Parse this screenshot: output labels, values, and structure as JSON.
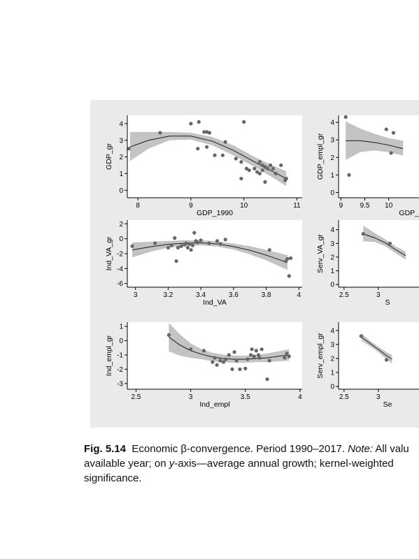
{
  "caption": {
    "figure_number": "Fig. 5.14",
    "title": "Economic β-convergence. Period 1990–2017.",
    "note_label": "Note:",
    "line1_rest": "All valu",
    "line2_start": "available year; on",
    "line2_axis": "y",
    "line2_rest": "-axis—average annual growth; kernel-weighted",
    "line3": "significance."
  },
  "colors": {
    "panel_bg": "#eaeaea",
    "plot_bg": "#ffffff",
    "ci_band": "#bdbdbd",
    "fit_line": "#1a1a1a",
    "marker": "#666666"
  },
  "chart_data": [
    {
      "id": "gdp",
      "type": "scatter",
      "xlabel": "GDP_1990",
      "ylabel": "GDP_gr",
      "xlim": [
        7.8,
        11.1
      ],
      "ylim": [
        -0.45,
        4.5
      ],
      "xticks": [
        8,
        9,
        10,
        11
      ],
      "yticks": [
        0,
        1,
        2,
        3,
        4
      ],
      "points": [
        [
          7.83,
          2.5
        ],
        [
          8.42,
          3.45
        ],
        [
          9.0,
          4.0
        ],
        [
          9.15,
          4.1
        ],
        [
          9.13,
          2.5
        ],
        [
          9.25,
          3.5
        ],
        [
          9.3,
          3.5
        ],
        [
          9.35,
          3.45
        ],
        [
          9.3,
          2.6
        ],
        [
          9.45,
          2.1
        ],
        [
          9.6,
          2.1
        ],
        [
          9.65,
          2.9
        ],
        [
          9.85,
          1.9
        ],
        [
          9.95,
          1.7
        ],
        [
          9.95,
          0.7
        ],
        [
          10.0,
          4.1
        ],
        [
          10.05,
          1.3
        ],
        [
          10.1,
          1.2
        ],
        [
          10.2,
          1.3
        ],
        [
          10.25,
          1.1
        ],
        [
          10.3,
          1.7
        ],
        [
          10.35,
          1.5
        ],
        [
          10.3,
          1.0
        ],
        [
          10.35,
          1.2
        ],
        [
          10.4,
          1.4
        ],
        [
          10.45,
          1.3
        ],
        [
          10.5,
          1.5
        ],
        [
          10.55,
          1.3
        ],
        [
          10.6,
          1.0
        ],
        [
          10.7,
          1.5
        ],
        [
          10.8,
          0.7
        ],
        [
          10.78,
          0.6
        ],
        [
          10.4,
          0.5
        ]
      ],
      "fit": [
        [
          7.85,
          2.6
        ],
        [
          8.2,
          3.0
        ],
        [
          8.6,
          3.25
        ],
        [
          9.0,
          3.25
        ],
        [
          9.4,
          2.95
        ],
        [
          9.8,
          2.4
        ],
        [
          10.2,
          1.7
        ],
        [
          10.5,
          1.2
        ],
        [
          10.8,
          0.7
        ]
      ],
      "ci_upper": [
        [
          7.85,
          3.5
        ],
        [
          8.2,
          3.5
        ],
        [
          8.6,
          3.5
        ],
        [
          9.0,
          3.45
        ],
        [
          9.4,
          3.2
        ],
        [
          9.8,
          2.7
        ],
        [
          10.2,
          2.0
        ],
        [
          10.5,
          1.55
        ],
        [
          10.8,
          1.15
        ]
      ],
      "ci_lower": [
        [
          7.85,
          1.75
        ],
        [
          8.2,
          2.5
        ],
        [
          8.6,
          3.0
        ],
        [
          9.0,
          3.05
        ],
        [
          9.4,
          2.7
        ],
        [
          9.8,
          2.1
        ],
        [
          10.2,
          1.4
        ],
        [
          10.5,
          0.85
        ],
        [
          10.8,
          0.25
        ]
      ]
    },
    {
      "id": "gdp_empl",
      "type": "scatter",
      "xlabel": "GDP_",
      "ylabel": "GDP_empl_gr",
      "xlim": [
        8.95,
        11.0
      ],
      "ylim": [
        -0.3,
        4.4
      ],
      "xticks": [
        9,
        9.5,
        10
      ],
      "yticks": [
        0,
        1,
        2,
        3,
        4
      ],
      "points": [
        [
          9.1,
          4.3
        ],
        [
          9.17,
          1.0
        ],
        [
          9.95,
          3.6
        ],
        [
          10.05,
          2.25
        ],
        [
          10.1,
          3.4
        ]
      ],
      "fit": [
        [
          9.1,
          2.95
        ],
        [
          9.4,
          2.95
        ],
        [
          9.7,
          2.85
        ],
        [
          10.0,
          2.7
        ],
        [
          10.3,
          2.5
        ]
      ],
      "ci_upper": [
        [
          9.1,
          4.05
        ],
        [
          9.4,
          3.65
        ],
        [
          9.7,
          3.35
        ],
        [
          10.0,
          3.1
        ],
        [
          10.3,
          2.95
        ]
      ],
      "ci_lower": [
        [
          9.1,
          1.85
        ],
        [
          9.4,
          2.3
        ],
        [
          9.7,
          2.4
        ],
        [
          10.0,
          2.3
        ],
        [
          10.3,
          2.1
        ]
      ]
    },
    {
      "id": "ind_va",
      "type": "scatter",
      "xlabel": "Ind_VA",
      "ylabel": "Ind_VA_gr",
      "xlim": [
        2.95,
        4.02
      ],
      "ylim": [
        -6.5,
        2.5
      ],
      "xticks": [
        3,
        3.2,
        3.4,
        3.6,
        3.8,
        4
      ],
      "yticks": [
        -6,
        -4,
        -2,
        0,
        2
      ],
      "points": [
        [
          2.98,
          -1.0
        ],
        [
          3.12,
          -0.6
        ],
        [
          3.2,
          -1.2
        ],
        [
          3.22,
          -0.9
        ],
        [
          3.24,
          0.1
        ],
        [
          3.26,
          -1.2
        ],
        [
          3.25,
          -3.0
        ],
        [
          3.28,
          -1.0
        ],
        [
          3.3,
          -0.8
        ],
        [
          3.31,
          -0.6
        ],
        [
          3.32,
          -1.2
        ],
        [
          3.33,
          -0.7
        ],
        [
          3.34,
          -1.5
        ],
        [
          3.35,
          -0.9
        ],
        [
          3.36,
          0.8
        ],
        [
          3.37,
          -0.3
        ],
        [
          3.38,
          -0.5
        ],
        [
          3.4,
          -0.2
        ],
        [
          3.45,
          -0.6
        ],
        [
          3.5,
          -0.3
        ],
        [
          3.52,
          -0.7
        ],
        [
          3.55,
          -0.1
        ],
        [
          3.82,
          -1.5
        ],
        [
          3.92,
          -3.0
        ],
        [
          3.93,
          -2.7
        ],
        [
          3.94,
          -5.0
        ],
        [
          3.95,
          -2.6
        ]
      ],
      "fit": [
        [
          2.98,
          -1.5
        ],
        [
          3.1,
          -1.05
        ],
        [
          3.2,
          -0.75
        ],
        [
          3.3,
          -0.6
        ],
        [
          3.4,
          -0.55
        ],
        [
          3.5,
          -0.7
        ],
        [
          3.6,
          -1.05
        ],
        [
          3.7,
          -1.55
        ],
        [
          3.8,
          -2.2
        ],
        [
          3.93,
          -3.2
        ]
      ],
      "ci_upper": [
        [
          2.98,
          -0.5
        ],
        [
          3.1,
          -0.4
        ],
        [
          3.2,
          -0.3
        ],
        [
          3.3,
          -0.2
        ],
        [
          3.4,
          -0.2
        ],
        [
          3.5,
          -0.35
        ],
        [
          3.6,
          -0.65
        ],
        [
          3.7,
          -1.0
        ],
        [
          3.8,
          -1.5
        ],
        [
          3.93,
          -2.2
        ]
      ],
      "ci_lower": [
        [
          2.98,
          -2.5
        ],
        [
          3.1,
          -1.7
        ],
        [
          3.2,
          -1.2
        ],
        [
          3.3,
          -1.0
        ],
        [
          3.4,
          -0.9
        ],
        [
          3.5,
          -1.05
        ],
        [
          3.6,
          -1.45
        ],
        [
          3.7,
          -2.1
        ],
        [
          3.8,
          -2.9
        ],
        [
          3.93,
          -4.2
        ]
      ]
    },
    {
      "id": "serv_va",
      "type": "scatter",
      "xlabel": "S",
      "ylabel": "Serv_VA_gr",
      "xlim": [
        2.42,
        3.85
      ],
      "ylim": [
        -0.2,
        4.7
      ],
      "xticks": [
        2.5,
        3
      ],
      "yticks": [
        0,
        1,
        2,
        3,
        4
      ],
      "points": [
        [
          2.78,
          3.7
        ],
        [
          3.17,
          3.0
        ]
      ],
      "fit": [
        [
          2.78,
          3.7
        ],
        [
          2.95,
          3.4
        ],
        [
          3.1,
          3.05
        ],
        [
          3.25,
          2.55
        ],
        [
          3.4,
          2.1
        ]
      ],
      "ci_upper": [
        [
          2.78,
          4.3
        ],
        [
          2.95,
          3.75
        ],
        [
          3.1,
          3.3
        ],
        [
          3.25,
          2.8
        ],
        [
          3.4,
          2.4
        ]
      ],
      "ci_lower": [
        [
          2.78,
          3.15
        ],
        [
          2.95,
          3.1
        ],
        [
          3.1,
          2.8
        ],
        [
          3.25,
          2.3
        ],
        [
          3.4,
          1.8
        ]
      ]
    },
    {
      "id": "ind_empl",
      "type": "scatter",
      "xlabel": "Ind_empl",
      "ylabel": "Ind_empl_gr",
      "xlim": [
        2.42,
        4.02
      ],
      "ylim": [
        -3.4,
        1.3
      ],
      "xticks": [
        2.5,
        3,
        3.5,
        4
      ],
      "yticks": [
        -3,
        -2,
        -1,
        0,
        1
      ],
      "points": [
        [
          2.8,
          0.4
        ],
        [
          3.0,
          -0.6
        ],
        [
          3.12,
          -0.7
        ],
        [
          3.2,
          -1.5
        ],
        [
          3.22,
          -1.2
        ],
        [
          3.24,
          -1.7
        ],
        [
          3.27,
          -1.4
        ],
        [
          3.3,
          -1.5
        ],
        [
          3.32,
          -1.3
        ],
        [
          3.35,
          -1.0
        ],
        [
          3.38,
          -2.0
        ],
        [
          3.4,
          -0.8
        ],
        [
          3.42,
          -1.4
        ],
        [
          3.45,
          -2.0
        ],
        [
          3.5,
          -1.95
        ],
        [
          3.52,
          -1.3
        ],
        [
          3.55,
          -1.0
        ],
        [
          3.56,
          -0.6
        ],
        [
          3.58,
          -1.1
        ],
        [
          3.6,
          -0.7
        ],
        [
          3.62,
          -1.0
        ],
        [
          3.63,
          -1.2
        ],
        [
          3.65,
          -0.6
        ],
        [
          3.7,
          -2.7
        ],
        [
          3.72,
          -1.4
        ],
        [
          3.86,
          -1.2
        ],
        [
          3.88,
          -0.9
        ],
        [
          3.9,
          -1.1
        ]
      ],
      "fit": [
        [
          2.8,
          0.25
        ],
        [
          2.9,
          -0.3
        ],
        [
          3.0,
          -0.7
        ],
        [
          3.1,
          -0.95
        ],
        [
          3.2,
          -1.15
        ],
        [
          3.3,
          -1.25
        ],
        [
          3.4,
          -1.3
        ],
        [
          3.5,
          -1.3
        ],
        [
          3.6,
          -1.25
        ],
        [
          3.7,
          -1.2
        ],
        [
          3.8,
          -1.1
        ],
        [
          3.9,
          -1.0
        ]
      ],
      "ci_upper": [
        [
          2.8,
          1.25
        ],
        [
          2.9,
          0.45
        ],
        [
          3.0,
          -0.2
        ],
        [
          3.1,
          -0.6
        ],
        [
          3.2,
          -0.85
        ],
        [
          3.3,
          -0.98
        ],
        [
          3.4,
          -1.05
        ],
        [
          3.5,
          -1.05
        ],
        [
          3.6,
          -1.0
        ],
        [
          3.7,
          -0.9
        ],
        [
          3.8,
          -0.75
        ],
        [
          3.9,
          -0.6
        ]
      ],
      "ci_lower": [
        [
          2.8,
          -0.75
        ],
        [
          2.9,
          -1.05
        ],
        [
          3.0,
          -1.2
        ],
        [
          3.1,
          -1.3
        ],
        [
          3.2,
          -1.45
        ],
        [
          3.3,
          -1.52
        ],
        [
          3.4,
          -1.55
        ],
        [
          3.5,
          -1.55
        ],
        [
          3.6,
          -1.5
        ],
        [
          3.7,
          -1.5
        ],
        [
          3.8,
          -1.45
        ],
        [
          3.9,
          -1.4
        ]
      ]
    },
    {
      "id": "serv_empl",
      "type": "scatter",
      "xlabel": "Se",
      "ylabel": "Serv_empl_gr",
      "xlim": [
        2.42,
        3.85
      ],
      "ylim": [
        -0.2,
        4.6
      ],
      "xticks": [
        2.5,
        3
      ],
      "yticks": [
        0,
        1,
        2,
        3,
        4
      ],
      "points": [
        [
          2.75,
          3.6
        ],
        [
          3.12,
          1.9
        ]
      ],
      "fit": [
        [
          2.75,
          3.55
        ],
        [
          2.9,
          3.0
        ],
        [
          3.0,
          2.65
        ],
        [
          3.12,
          2.2
        ],
        [
          3.2,
          1.95
        ]
      ],
      "ci_upper": [
        [
          2.75,
          3.8
        ],
        [
          2.9,
          3.2
        ],
        [
          3.0,
          2.85
        ],
        [
          3.12,
          2.45
        ],
        [
          3.2,
          2.25
        ]
      ],
      "ci_lower": [
        [
          2.75,
          3.3
        ],
        [
          2.9,
          2.8
        ],
        [
          3.0,
          2.45
        ],
        [
          3.12,
          1.95
        ],
        [
          3.2,
          1.65
        ]
      ]
    }
  ]
}
